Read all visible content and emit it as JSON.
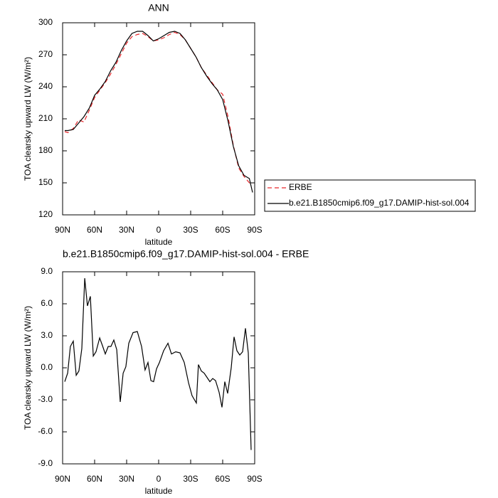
{
  "chart_data": [
    {
      "type": "line",
      "title": "ANN",
      "x_label": "latitude",
      "y_label": "TOA clearsky upward LW (W/m²)",
      "x": [
        88,
        85,
        80,
        75,
        70,
        65,
        60,
        55,
        50,
        45,
        40,
        35,
        30,
        25,
        20,
        15,
        10,
        5,
        0,
        -5,
        -10,
        -15,
        -20,
        -25,
        -30,
        -35,
        -40,
        -45,
        -50,
        -55,
        -60,
        -65,
        -70,
        -75,
        -80,
        -85,
        -88
      ],
      "series": [
        {
          "name": "ERBE",
          "color": "#e8262a",
          "style": "dashed",
          "values": [
            198,
            197,
            201,
            209,
            207,
            218,
            230,
            237,
            244,
            252,
            261,
            271,
            281,
            287,
            289,
            290,
            287,
            283,
            284,
            286,
            289,
            291,
            289,
            284,
            276,
            268,
            258,
            251,
            244,
            237,
            233,
            212,
            185,
            164,
            156,
            150,
            149
          ]
        },
        {
          "name": "b.e21.B1850cmip6.f09_g17.DAMIP-hist-sol.004",
          "color": "#000000",
          "style": "solid",
          "values": [
            199,
            199,
            200,
            206,
            212,
            220,
            232,
            238,
            245,
            255,
            263,
            274,
            283,
            290,
            292,
            292,
            288,
            283,
            285,
            288,
            291,
            292,
            290,
            284,
            276,
            268,
            258,
            250,
            243,
            237,
            228,
            208,
            184,
            166,
            157,
            154,
            141
          ]
        }
      ],
      "xlim": [
        90,
        -90
      ],
      "xticks": [
        {
          "value": 90,
          "label": "90N"
        },
        {
          "value": 60,
          "label": "60N"
        },
        {
          "value": 30,
          "label": "30N"
        },
        0,
        {
          "value": -30,
          "label": "30S"
        },
        {
          "value": -60,
          "label": "60S"
        },
        {
          "value": -90,
          "label": "90S"
        }
      ],
      "ylim": [
        120,
        300
      ],
      "yticks": [
        120,
        150,
        180,
        210,
        240,
        270,
        300
      ],
      "legend": "right"
    },
    {
      "type": "line",
      "title": "b.e21.B1850cmip6.f09_g17.DAMIP-hist-sol.004 - ERBE",
      "x_label": "latitude",
      "y_label": "TOA clearsky upward LW (W/m²)",
      "x": [
        88,
        85.3,
        82.7,
        80,
        77.3,
        74.7,
        72,
        69.3,
        66.7,
        64,
        61.3,
        58.7,
        55.3,
        52.7,
        50,
        47.3,
        44.7,
        42,
        39.3,
        36,
        33.3,
        30.7,
        28,
        24,
        20,
        16,
        12.7,
        10,
        7.3,
        4.7,
        2,
        -0.7,
        -4.7,
        -8.7,
        -12,
        -16,
        -20,
        -24,
        -28,
        -31.3,
        -35.3,
        -37.3,
        -40,
        -42.7,
        -45.3,
        -48,
        -50.7,
        -53.3,
        -56.7,
        -59.3,
        -62,
        -64.7,
        -68,
        -70.7,
        -73.3,
        -76,
        -78.7,
        -81.3,
        -84,
        -86.7
      ],
      "values": [
        -1.3,
        -0.5,
        2.0,
        2.5,
        -0.7,
        -0.3,
        1.8,
        8.4,
        5.8,
        6.7,
        1.1,
        1.5,
        2.8,
        2.1,
        1.3,
        2.0,
        2.0,
        2.6,
        1.7,
        -3.2,
        -0.5,
        0.1,
        2.3,
        3.3,
        3.4,
        2.0,
        -0.2,
        0.5,
        -1.2,
        -1.3,
        -0.1,
        0.5,
        1.6,
        2.3,
        1.3,
        1.5,
        1.4,
        0.5,
        -1.4,
        -2.6,
        -3.3,
        0.3,
        -0.3,
        -0.5,
        -0.9,
        -1.3,
        -1.0,
        -1.2,
        -2.3,
        -3.7,
        -1.3,
        -2.4,
        0,
        2.9,
        1.6,
        1.2,
        1.5,
        3.7,
        1.4,
        -7.7
      ],
      "color": "#000000",
      "xlim": [
        90,
        -90
      ],
      "xticks": [
        {
          "value": 90,
          "label": "90N"
        },
        {
          "value": 60,
          "label": "60N"
        },
        {
          "value": 30,
          "label": "30N"
        },
        0,
        {
          "value": -30,
          "label": "30S"
        },
        {
          "value": -60,
          "label": "60S"
        },
        {
          "value": -90,
          "label": "90S"
        }
      ],
      "ylim": [
        -9,
        9
      ],
      "yticks": [
        {
          "value": -9,
          "label": "-9.0"
        },
        {
          "value": -6,
          "label": "-6.0"
        },
        {
          "value": -3,
          "label": "-3.0"
        },
        {
          "value": 0,
          "label": "0.0"
        },
        {
          "value": 3,
          "label": "3.0"
        },
        {
          "value": 6,
          "label": "6.0"
        },
        {
          "value": 9,
          "label": "9.0"
        }
      ]
    }
  ]
}
